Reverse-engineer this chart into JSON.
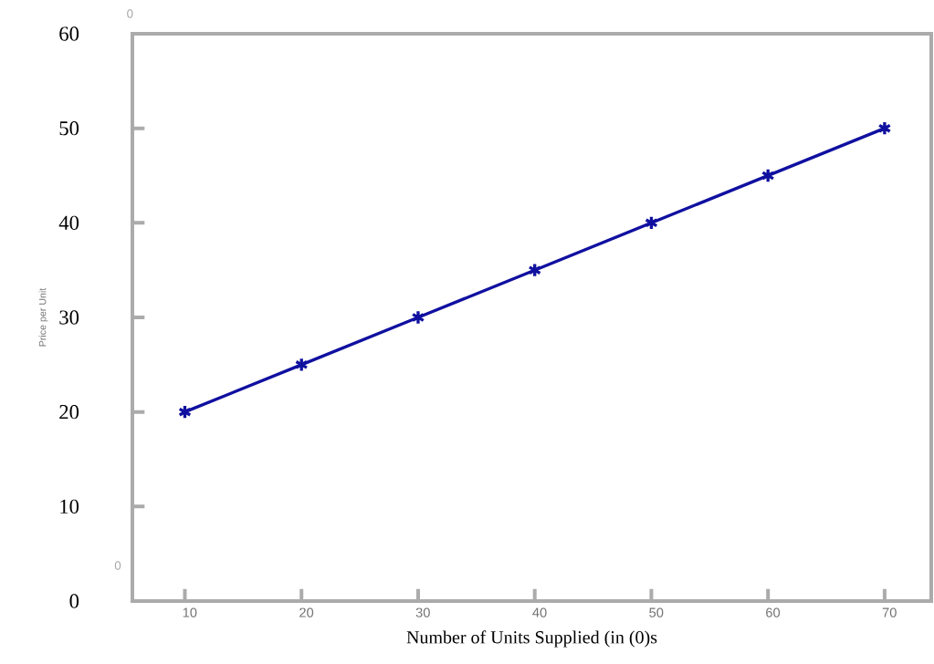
{
  "chart_data": {
    "type": "line",
    "xlabel": "Number of Units Supplied (in (0)s",
    "ylabel": "Price per Unit",
    "x": [
      10,
      20,
      30,
      40,
      50,
      60,
      70
    ],
    "series": [
      {
        "color": "#1010a0",
        "values": [
          20,
          25,
          30,
          35,
          40,
          45,
          50
        ]
      }
    ],
    "xlim": [
      5.5,
      74
    ],
    "ylim": [
      0,
      60
    ],
    "xticks": [
      10,
      20,
      30,
      40,
      50,
      60,
      70
    ],
    "yticks": [
      0,
      10,
      20,
      30,
      40,
      50,
      60
    ],
    "marker": "cross",
    "line_style": "solid",
    "grid": false,
    "legend": false,
    "annotations": [
      "0",
      "0"
    ]
  }
}
